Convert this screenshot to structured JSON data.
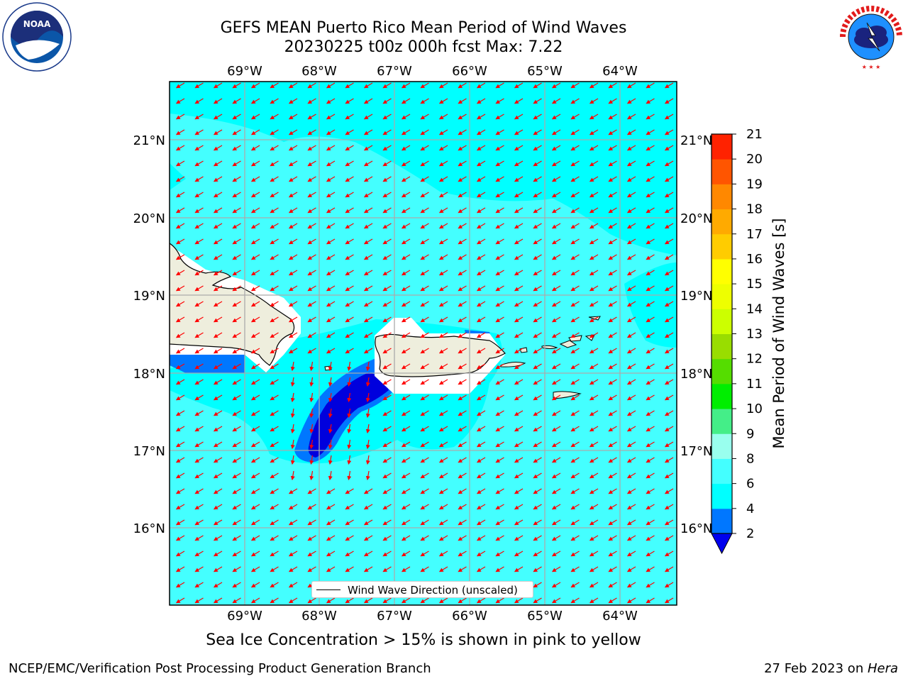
{
  "title": {
    "line1": "GEFS MEAN Puerto Rico Mean Period of Wind Waves",
    "line2": "20230225 t00z 000h fcst   Max: 7.22"
  },
  "logos": {
    "noaa": {
      "text": "NOAA",
      "ring_text": "NATIONAL OCEANIC AND ATMOSPHERIC ADMINISTRATION · U.S. DEPARTMENT OF COMMERCE"
    },
    "nws": {
      "ring_text": "NATIONAL WEATHER SERVICE"
    }
  },
  "map": {
    "lon_labels": [
      "69°W",
      "68°W",
      "67°W",
      "66°W",
      "65°W",
      "64°W"
    ],
    "lat_labels": [
      "21°N",
      "20°N",
      "19°N",
      "18°N",
      "17°N",
      "16°N"
    ],
    "legend_label": "Wind Wave Direction (unscaled)",
    "colors": {
      "ocean_light": "#44ffff",
      "ocean_cyan": "#00ffff",
      "band_2_4": "#0077ff",
      "band_lt_2": "#0000dd",
      "land": "#eeeedd",
      "arrow": "#ff0000",
      "no_data": "#ffffff"
    }
  },
  "colorbar": {
    "label": "Mean Period of Wind Waves [s]",
    "ticks": [
      "2",
      "4",
      "6",
      "8",
      "9",
      "10",
      "11",
      "12",
      "13",
      "14",
      "15",
      "16",
      "17",
      "18",
      "19",
      "20",
      "21"
    ],
    "colors": [
      "#0077ff",
      "#00ffff",
      "#44ffff",
      "#99ffee",
      "#44ee88",
      "#00ee00",
      "#55dd00",
      "#99dd00",
      "#ccff00",
      "#eeff00",
      "#ffff00",
      "#ffcc00",
      "#ffaa00",
      "#ff8800",
      "#ff5500",
      "#ff2200"
    ],
    "under_color": "#0000ee"
  },
  "caption": "Sea Ice Concentration > 15% is shown in pink to yellow",
  "footer": {
    "left": "NCEP/EMC/Verification Post Processing Product Generation Branch",
    "date": "27 Feb 2023 on ",
    "machine": "Hera"
  }
}
